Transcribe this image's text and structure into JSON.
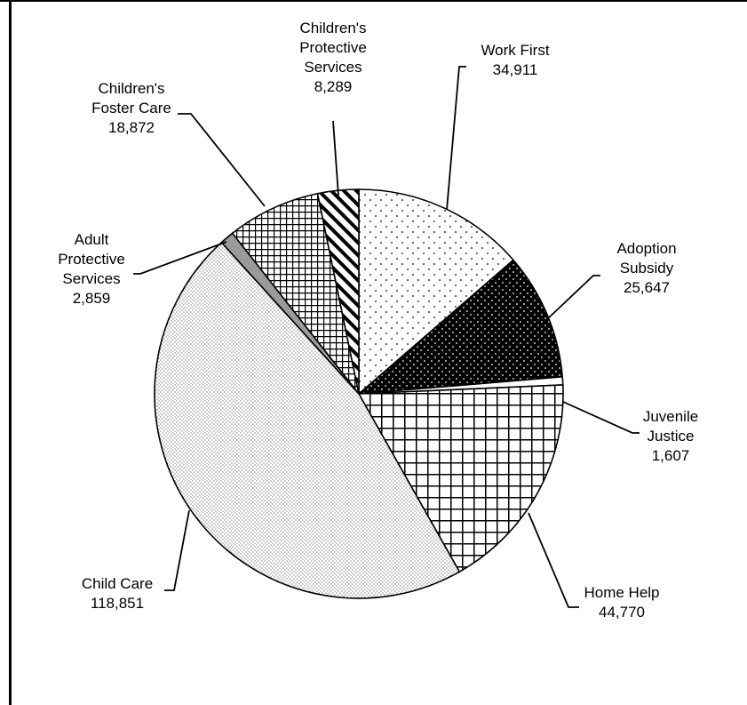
{
  "chart_data": {
    "type": "pie",
    "title": "",
    "slices": [
      {
        "label": [
          "Work First"
        ],
        "value": 34911,
        "value_text": "34,911",
        "pattern": "pat-dots-sparse"
      },
      {
        "label": [
          "Adoption",
          "Subsidy"
        ],
        "value": 25647,
        "value_text": "25,647",
        "pattern": "pat-dots-dark"
      },
      {
        "label": [
          "Juvenile",
          "Justice"
        ],
        "value": 1607,
        "value_text": "1,607",
        "pattern": "pat-plain-white"
      },
      {
        "label": [
          "Home Help"
        ],
        "value": 44770,
        "value_text": "44,770",
        "pattern": "pat-grid-large"
      },
      {
        "label": [
          "Child Care"
        ],
        "value": 118851,
        "value_text": "118,851",
        "pattern": "pat-dots-dense"
      },
      {
        "label": [
          "Adult",
          "Protective",
          "Services"
        ],
        "value": 2859,
        "value_text": "2,859",
        "pattern": "pat-solid-gray"
      },
      {
        "label": [
          "Children's",
          "Foster Care"
        ],
        "value": 18872,
        "value_text": "18,872",
        "pattern": "pat-grid-small"
      },
      {
        "label": [
          "Children's",
          "Protective",
          "Services"
        ],
        "value": 8289,
        "value_text": "8,289",
        "pattern": "pat-diag-stripes"
      }
    ]
  }
}
